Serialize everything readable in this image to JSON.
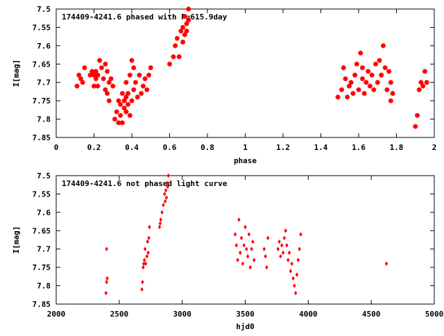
{
  "chart_data": [
    {
      "type": "scatter",
      "title": "174409-4241.6 phased with P=615.9day",
      "xlabel": "phase",
      "ylabel": "I[mag]",
      "xlim": [
        0,
        2
      ],
      "ylim": [
        7.5,
        7.85
      ],
      "y_inverted": true,
      "grid": false,
      "x_ticks": [
        "0",
        "0.2",
        "0.4",
        "0.6",
        "0.8",
        "1",
        "1.2",
        "1.4",
        "1.6",
        "1.8",
        "2"
      ],
      "y_ticks": [
        "7.5",
        "7.55",
        "7.6",
        "7.65",
        "7.7",
        "7.75",
        "7.8",
        "7.85"
      ],
      "marker_color": "#ff0000",
      "marker": "star",
      "x": [
        0.11,
        0.12,
        0.13,
        0.14,
        0.15,
        0.18,
        0.19,
        0.2,
        0.2,
        0.21,
        0.21,
        0.22,
        0.22,
        0.23,
        0.24,
        0.25,
        0.26,
        0.26,
        0.27,
        0.27,
        0.28,
        0.28,
        0.29,
        0.3,
        0.31,
        0.32,
        0.33,
        0.33,
        0.34,
        0.34,
        0.35,
        0.35,
        0.36,
        0.36,
        0.37,
        0.37,
        0.37,
        0.38,
        0.38,
        0.39,
        0.39,
        0.4,
        0.4,
        0.41,
        0.41,
        0.42,
        0.43,
        0.44,
        0.45,
        0.46,
        0.47,
        0.48,
        0.49,
        0.5,
        0.6,
        0.62,
        0.63,
        0.64,
        0.65,
        0.66,
        0.67,
        0.67,
        0.68,
        0.68,
        0.69,
        0.69,
        0.7,
        0.7,
        1.49,
        1.51,
        1.52,
        1.53,
        1.54,
        1.55,
        1.56,
        1.57,
        1.58,
        1.59,
        1.6,
        1.61,
        1.62,
        1.62,
        1.63,
        1.64,
        1.65,
        1.66,
        1.67,
        1.68,
        1.69,
        1.7,
        1.71,
        1.72,
        1.73,
        1.74,
        1.75,
        1.76,
        1.77,
        1.77,
        1.78,
        1.9,
        1.91,
        1.92,
        1.93,
        1.94,
        1.95,
        1.96
      ],
      "y": [
        7.71,
        7.68,
        7.69,
        7.7,
        7.66,
        7.68,
        7.67,
        7.68,
        7.71,
        7.69,
        7.67,
        7.68,
        7.71,
        7.64,
        7.66,
        7.69,
        7.65,
        7.72,
        7.67,
        7.73,
        7.7,
        7.75,
        7.69,
        7.71,
        7.8,
        7.78,
        7.75,
        7.81,
        7.76,
        7.79,
        7.81,
        7.73,
        7.75,
        7.77,
        7.74,
        7.78,
        7.7,
        7.73,
        7.76,
        7.68,
        7.79,
        7.75,
        7.64,
        7.72,
        7.66,
        7.7,
        7.74,
        7.68,
        7.73,
        7.71,
        7.69,
        7.72,
        7.68,
        7.66,
        7.65,
        7.63,
        7.6,
        7.58,
        7.63,
        7.56,
        7.55,
        7.59,
        7.57,
        7.52,
        7.54,
        7.56,
        7.5,
        7.53,
        7.74,
        7.72,
        7.66,
        7.69,
        7.74,
        7.71,
        7.7,
        7.73,
        7.68,
        7.65,
        7.72,
        7.62,
        7.69,
        7.66,
        7.73,
        7.7,
        7.67,
        7.71,
        7.68,
        7.72,
        7.65,
        7.7,
        7.64,
        7.68,
        7.6,
        7.66,
        7.72,
        7.67,
        7.7,
        7.75,
        7.73,
        7.82,
        7.79,
        7.72,
        7.7,
        7.71,
        7.67,
        7.7
      ],
      "marker_size": 3.5,
      "title_position": "top-left"
    },
    {
      "type": "scatter",
      "title": "174409-4241.6 not phased light curve",
      "xlabel": "hjd0",
      "ylabel": "I[mag]",
      "xlim": [
        2000,
        5000
      ],
      "ylim": [
        7.5,
        7.85
      ],
      "y_inverted": true,
      "grid": false,
      "x_ticks": [
        "2000",
        "2500",
        "3000",
        "3500",
        "4000",
        "4500",
        "5000"
      ],
      "y_ticks": [
        "7.5",
        "7.55",
        "7.6",
        "7.65",
        "7.7",
        "7.75",
        "7.8",
        "7.85"
      ],
      "marker_color": "#ff0000",
      "marker": "diamond",
      "x": [
        2395,
        2400,
        2400,
        2405,
        2680,
        2685,
        2690,
        2695,
        2700,
        2705,
        2710,
        2720,
        2725,
        2730,
        2735,
        2740,
        2820,
        2825,
        2830,
        2840,
        2850,
        2860,
        2865,
        2870,
        2875,
        2880,
        2885,
        2890,
        3420,
        3430,
        3440,
        3450,
        3460,
        3470,
        3480,
        3490,
        3500,
        3510,
        3520,
        3530,
        3540,
        3550,
        3560,
        3570,
        3650,
        3660,
        3670,
        3680,
        3760,
        3770,
        3780,
        3790,
        3800,
        3810,
        3820,
        3830,
        3840,
        3850,
        3860,
        3870,
        3880,
        3890,
        3900,
        3910,
        3920,
        3930,
        3940,
        4620
      ],
      "y": [
        7.82,
        7.79,
        7.7,
        7.78,
        7.81,
        7.79,
        7.75,
        7.74,
        7.73,
        7.7,
        7.74,
        7.72,
        7.68,
        7.71,
        7.67,
        7.64,
        7.64,
        7.63,
        7.62,
        7.6,
        7.58,
        7.55,
        7.57,
        7.54,
        7.56,
        7.52,
        7.53,
        7.5,
        7.66,
        7.69,
        7.73,
        7.62,
        7.71,
        7.67,
        7.74,
        7.69,
        7.64,
        7.7,
        7.72,
        7.66,
        7.75,
        7.7,
        7.68,
        7.73,
        7.7,
        7.72,
        7.75,
        7.67,
        7.7,
        7.68,
        7.72,
        7.69,
        7.71,
        7.67,
        7.65,
        7.69,
        7.73,
        7.71,
        7.76,
        7.74,
        7.78,
        7.8,
        7.82,
        7.77,
        7.73,
        7.7,
        7.66,
        7.74
      ],
      "marker_size": 2.5,
      "title_position": "top-left"
    }
  ]
}
